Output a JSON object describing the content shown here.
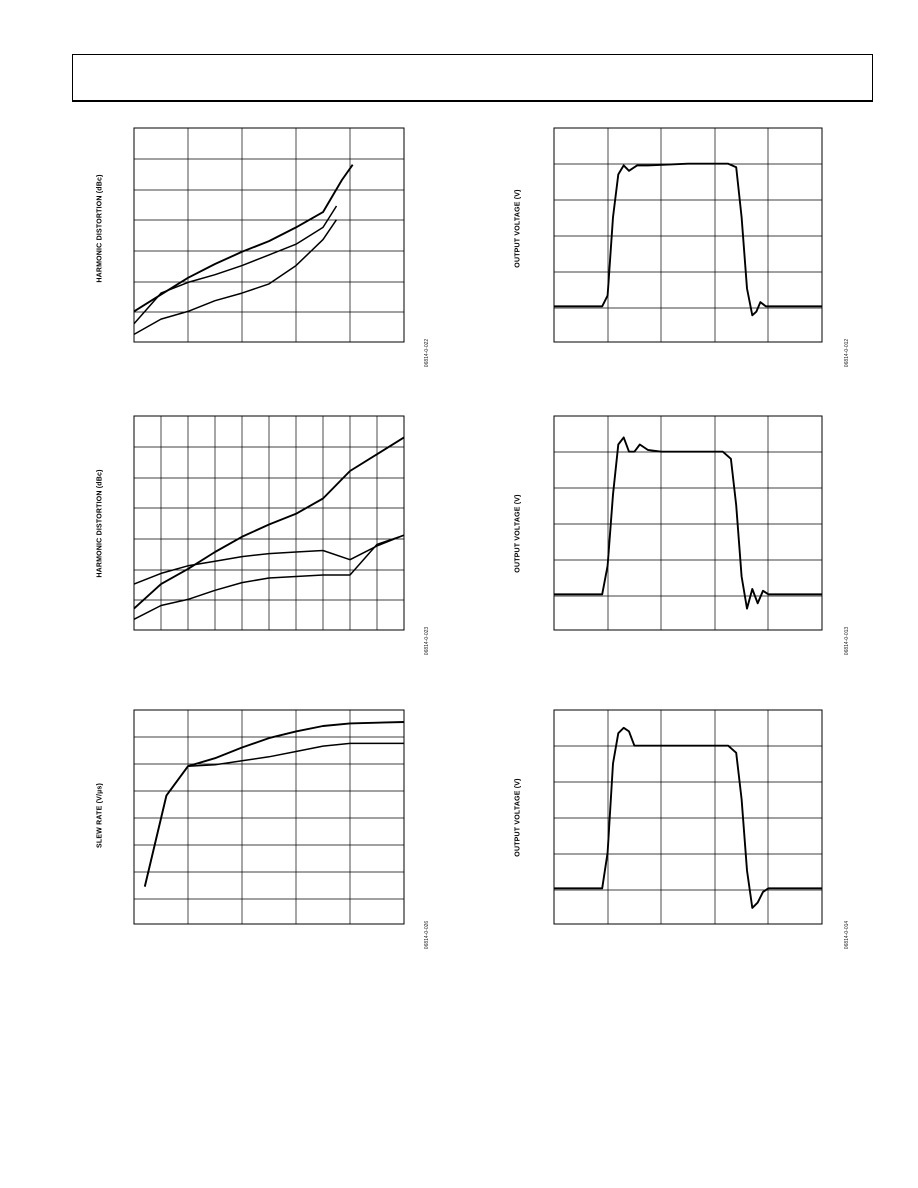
{
  "page": {
    "header_title": ""
  },
  "chart_data": [
    {
      "id": "distortion-1",
      "type": "line",
      "ylabel": "HARMONIC DISTORTION (dBc)",
      "figure_code": "06814-0-022",
      "xlim": [
        0,
        10
      ],
      "ylim": [
        0,
        7
      ],
      "series": [
        {
          "values": [
            [
              0,
              1.0
            ],
            [
              1,
              1.55
            ],
            [
              2,
              2.1
            ],
            [
              3,
              2.55
            ],
            [
              4,
              2.95
            ],
            [
              5,
              3.3
            ],
            [
              6,
              3.75
            ],
            [
              7,
              4.25
            ],
            [
              7.7,
              5.3
            ],
            [
              8.1,
              5.8
            ]
          ]
        },
        {
          "values": [
            [
              0,
              0.6
            ],
            [
              1,
              1.6
            ],
            [
              2,
              1.95
            ],
            [
              3,
              2.2
            ],
            [
              4,
              2.5
            ],
            [
              5,
              2.85
            ],
            [
              6,
              3.2
            ],
            [
              7,
              3.75
            ],
            [
              7.5,
              4.45
            ]
          ]
        },
        {
          "values": [
            [
              0,
              0.25
            ],
            [
              1,
              0.75
            ],
            [
              2,
              1.0
            ],
            [
              3,
              1.35
            ],
            [
              4,
              1.6
            ],
            [
              5,
              1.9
            ],
            [
              6,
              2.5
            ],
            [
              7,
              3.35
            ],
            [
              7.5,
              4.0
            ]
          ]
        }
      ]
    },
    {
      "id": "output-step-1",
      "type": "line",
      "ylabel": "OUTPUT VOLTAGE (V)",
      "figure_code": "06814-0-012",
      "xlim": [
        0,
        10
      ],
      "ylim": [
        0,
        6
      ],
      "series": [
        {
          "values": [
            [
              0,
              1.0
            ],
            [
              1.8,
              1.0
            ],
            [
              2.0,
              1.3
            ],
            [
              2.2,
              3.5
            ],
            [
              2.4,
              4.7
            ],
            [
              2.6,
              4.95
            ],
            [
              2.8,
              4.8
            ],
            [
              3.1,
              4.95
            ],
            [
              3.5,
              4.95
            ],
            [
              5,
              5.0
            ],
            [
              6.5,
              5.0
            ],
            [
              6.8,
              4.9
            ],
            [
              7.0,
              3.5
            ],
            [
              7.2,
              1.5
            ],
            [
              7.4,
              0.75
            ],
            [
              7.55,
              0.85
            ],
            [
              7.7,
              1.12
            ],
            [
              7.9,
              1.0
            ],
            [
              10,
              1.0
            ]
          ]
        }
      ]
    },
    {
      "id": "distortion-2",
      "type": "line",
      "ylabel": "HARMONIC DISTORTION (dBc)",
      "figure_code": "06814-0-023",
      "xlim": [
        0,
        10
      ],
      "ylim": [
        0,
        7
      ],
      "series": [
        {
          "values": [
            [
              0,
              0.7
            ],
            [
              1,
              1.5
            ],
            [
              2,
              2.0
            ],
            [
              3,
              2.55
            ],
            [
              4,
              3.05
            ],
            [
              5,
              3.45
            ],
            [
              6,
              3.8
            ],
            [
              7,
              4.3
            ],
            [
              8,
              5.2
            ],
            [
              10,
              6.3
            ]
          ]
        },
        {
          "values": [
            [
              0,
              1.5
            ],
            [
              1,
              1.85
            ],
            [
              2,
              2.1
            ],
            [
              3,
              2.25
            ],
            [
              4,
              2.4
            ],
            [
              5,
              2.5
            ],
            [
              6,
              2.55
            ],
            [
              7,
              2.6
            ],
            [
              8,
              2.3
            ],
            [
              9,
              2.75
            ],
            [
              10,
              3.1
            ]
          ]
        },
        {
          "values": [
            [
              0,
              0.35
            ],
            [
              1,
              0.8
            ],
            [
              2,
              1.0
            ],
            [
              3,
              1.3
            ],
            [
              4,
              1.55
            ],
            [
              5,
              1.7
            ],
            [
              6,
              1.75
            ],
            [
              7,
              1.8
            ],
            [
              8,
              1.8
            ],
            [
              9,
              2.8
            ],
            [
              10,
              3.1
            ]
          ]
        }
      ]
    },
    {
      "id": "output-step-2",
      "type": "line",
      "ylabel": "OUTPUT VOLTAGE (V)",
      "figure_code": "06814-0-013",
      "xlim": [
        0,
        10
      ],
      "ylim": [
        0,
        6
      ],
      "series": [
        {
          "values": [
            [
              0,
              1.0
            ],
            [
              1.8,
              1.0
            ],
            [
              2.0,
              1.8
            ],
            [
              2.2,
              3.8
            ],
            [
              2.4,
              5.2
            ],
            [
              2.6,
              5.4
            ],
            [
              2.8,
              5.0
            ],
            [
              3.0,
              5.0
            ],
            [
              3.2,
              5.2
            ],
            [
              3.5,
              5.05
            ],
            [
              4,
              5.0
            ],
            [
              5,
              5.0
            ],
            [
              6.3,
              5.0
            ],
            [
              6.6,
              4.8
            ],
            [
              6.8,
              3.5
            ],
            [
              7.0,
              1.5
            ],
            [
              7.2,
              0.6
            ],
            [
              7.4,
              1.15
            ],
            [
              7.6,
              0.75
            ],
            [
              7.8,
              1.1
            ],
            [
              8.0,
              1.0
            ],
            [
              10,
              1.0
            ]
          ]
        }
      ]
    },
    {
      "id": "slew-rate",
      "type": "line",
      "ylabel": "SLEW RATE (V/µs)",
      "figure_code": "06814-0-026",
      "xlim": [
        0,
        10
      ],
      "ylim": [
        0,
        8
      ],
      "series": [
        {
          "values": [
            [
              0.4,
              1.4
            ],
            [
              1.2,
              4.8
            ],
            [
              2,
              5.9
            ],
            [
              3,
              6.2
            ],
            [
              4,
              6.6
            ],
            [
              5,
              6.95
            ],
            [
              6,
              7.2
            ],
            [
              7,
              7.4
            ],
            [
              8,
              7.5
            ],
            [
              10,
              7.55
            ]
          ]
        },
        {
          "values": [
            [
              0.4,
              1.4
            ],
            [
              1.2,
              4.8
            ],
            [
              2,
              5.9
            ],
            [
              3,
              5.95
            ],
            [
              4,
              6.1
            ],
            [
              5,
              6.25
            ],
            [
              6,
              6.45
            ],
            [
              7,
              6.65
            ],
            [
              8,
              6.75
            ],
            [
              10,
              6.75
            ]
          ]
        }
      ]
    },
    {
      "id": "output-step-3",
      "type": "line",
      "ylabel": "OUTPUT VOLTAGE (V)",
      "figure_code": "06814-0-014",
      "xlim": [
        0,
        10
      ],
      "ylim": [
        0,
        6
      ],
      "series": [
        {
          "values": [
            [
              0,
              1.0
            ],
            [
              1.8,
              1.0
            ],
            [
              2.0,
              2.0
            ],
            [
              2.2,
              4.5
            ],
            [
              2.4,
              5.35
            ],
            [
              2.6,
              5.5
            ],
            [
              2.8,
              5.4
            ],
            [
              3.0,
              5.0
            ],
            [
              3.5,
              5.0
            ],
            [
              5,
              5.0
            ],
            [
              6.5,
              5.0
            ],
            [
              6.8,
              4.8
            ],
            [
              7.0,
              3.5
            ],
            [
              7.2,
              1.5
            ],
            [
              7.4,
              0.45
            ],
            [
              7.6,
              0.6
            ],
            [
              7.8,
              0.9
            ],
            [
              8.0,
              1.0
            ],
            [
              10,
              1.0
            ]
          ]
        }
      ]
    }
  ]
}
